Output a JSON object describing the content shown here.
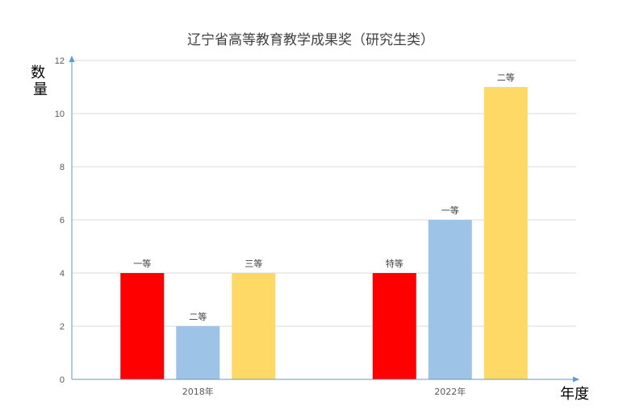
{
  "chart_data": {
    "type": "bar",
    "title": "辽宁省高等教育教学成果奖（研究生类）",
    "xlabel": "年度",
    "ylabel": "数量",
    "ylim": [
      0,
      12
    ],
    "yticks": [
      0,
      2,
      4,
      6,
      8,
      10,
      12
    ],
    "grid": true,
    "legend": "none",
    "categories": [
      "2018年",
      "2022年"
    ],
    "groups": [
      {
        "category": "2018年",
        "bars": [
          {
            "label": "一等",
            "value": 4,
            "color": "#ff0000"
          },
          {
            "label": "二等",
            "value": 2,
            "color": "#9dc3e6"
          },
          {
            "label": "三等",
            "value": 4,
            "color": "#ffd966"
          }
        ]
      },
      {
        "category": "2022年",
        "bars": [
          {
            "label": "特等",
            "value": 4,
            "color": "#ff0000"
          },
          {
            "label": "一等",
            "value": 6,
            "color": "#9dc3e6"
          },
          {
            "label": "二等",
            "value": 11,
            "color": "#ffd966"
          }
        ]
      }
    ],
    "colors": {
      "axis": "#5b9bd5",
      "grid": "#d9d9d9"
    }
  }
}
